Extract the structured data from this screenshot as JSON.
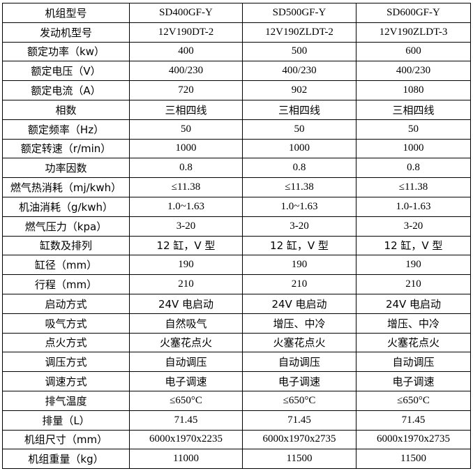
{
  "table": {
    "rows": [
      {
        "label": "机组型号",
        "values": [
          "SD400GF-Y",
          "SD500GF-Y",
          "SD600GF-Y"
        ]
      },
      {
        "label": "发动机型号",
        "values": [
          "12V190DT-2",
          "12V190ZLDT-2",
          "12V190ZLDT-3"
        ]
      },
      {
        "label": "额定功率（kw）",
        "values": [
          "400",
          "500",
          "600"
        ]
      },
      {
        "label": "额定电压（V）",
        "values": [
          "400/230",
          "400/230",
          "400/230"
        ]
      },
      {
        "label": "额定电流（A）",
        "values": [
          "720",
          "902",
          "1080"
        ]
      },
      {
        "label": "相数",
        "values": [
          "三相四线",
          "三相四线",
          "三相四线"
        ]
      },
      {
        "label": "额定频率（Hz）",
        "values": [
          "50",
          "50",
          "50"
        ]
      },
      {
        "label": "额定转速（r/min）",
        "values": [
          "1000",
          "1000",
          "1000"
        ]
      },
      {
        "label": "功率因数",
        "values": [
          "0.8",
          "0.8",
          "0.8"
        ]
      },
      {
        "label": "燃气热消耗（mj/kwh）",
        "values": [
          "≤11.38",
          "≤11.38",
          "≤11.38"
        ]
      },
      {
        "label": "机油消耗（g/kwh）",
        "values": [
          "1.0~1.63",
          "1.0~1.63",
          "1.0-1.63"
        ]
      },
      {
        "label": "燃气压力（kpa）",
        "values": [
          "3-20",
          "3-20",
          "3-20"
        ]
      },
      {
        "label": "缸数及排列",
        "values": [
          "12 缸，V 型",
          "12 缸，V 型",
          "12 缸，V 型"
        ]
      },
      {
        "label": "缸径（mm）",
        "values": [
          "190",
          "190",
          "190"
        ]
      },
      {
        "label": "行程（mm）",
        "values": [
          "210",
          "210",
          "210"
        ]
      },
      {
        "label": "启动方式",
        "values": [
          "24V 电启动",
          "24V 电启动",
          "24V 电启动"
        ]
      },
      {
        "label": "吸气方式",
        "values": [
          "自然吸气",
          "增压、中冷",
          "增压、中冷"
        ]
      },
      {
        "label": "点火方式",
        "values": [
          "火塞花点火",
          "火塞花点火",
          "火塞花点火"
        ]
      },
      {
        "label": "调压方式",
        "values": [
          "自动调压",
          "自动调压",
          "自动调压"
        ]
      },
      {
        "label": "调速方式",
        "values": [
          "电子调速",
          "电子调速",
          "电子调速"
        ]
      },
      {
        "label": "排气温度",
        "values": [
          "≤650°C",
          "≤650°C",
          "≤650°C"
        ]
      },
      {
        "label": "排量（L）",
        "values": [
          "71.45",
          "71.45",
          "71.45"
        ]
      },
      {
        "label": "机组尺寸（mm）",
        "values": [
          "6000x1970x2235",
          "6000x1970x2735",
          "6000x1970x2735"
        ]
      },
      {
        "label": "机组重量（kg）",
        "values": [
          "11000",
          "11500",
          "11500"
        ]
      }
    ]
  }
}
